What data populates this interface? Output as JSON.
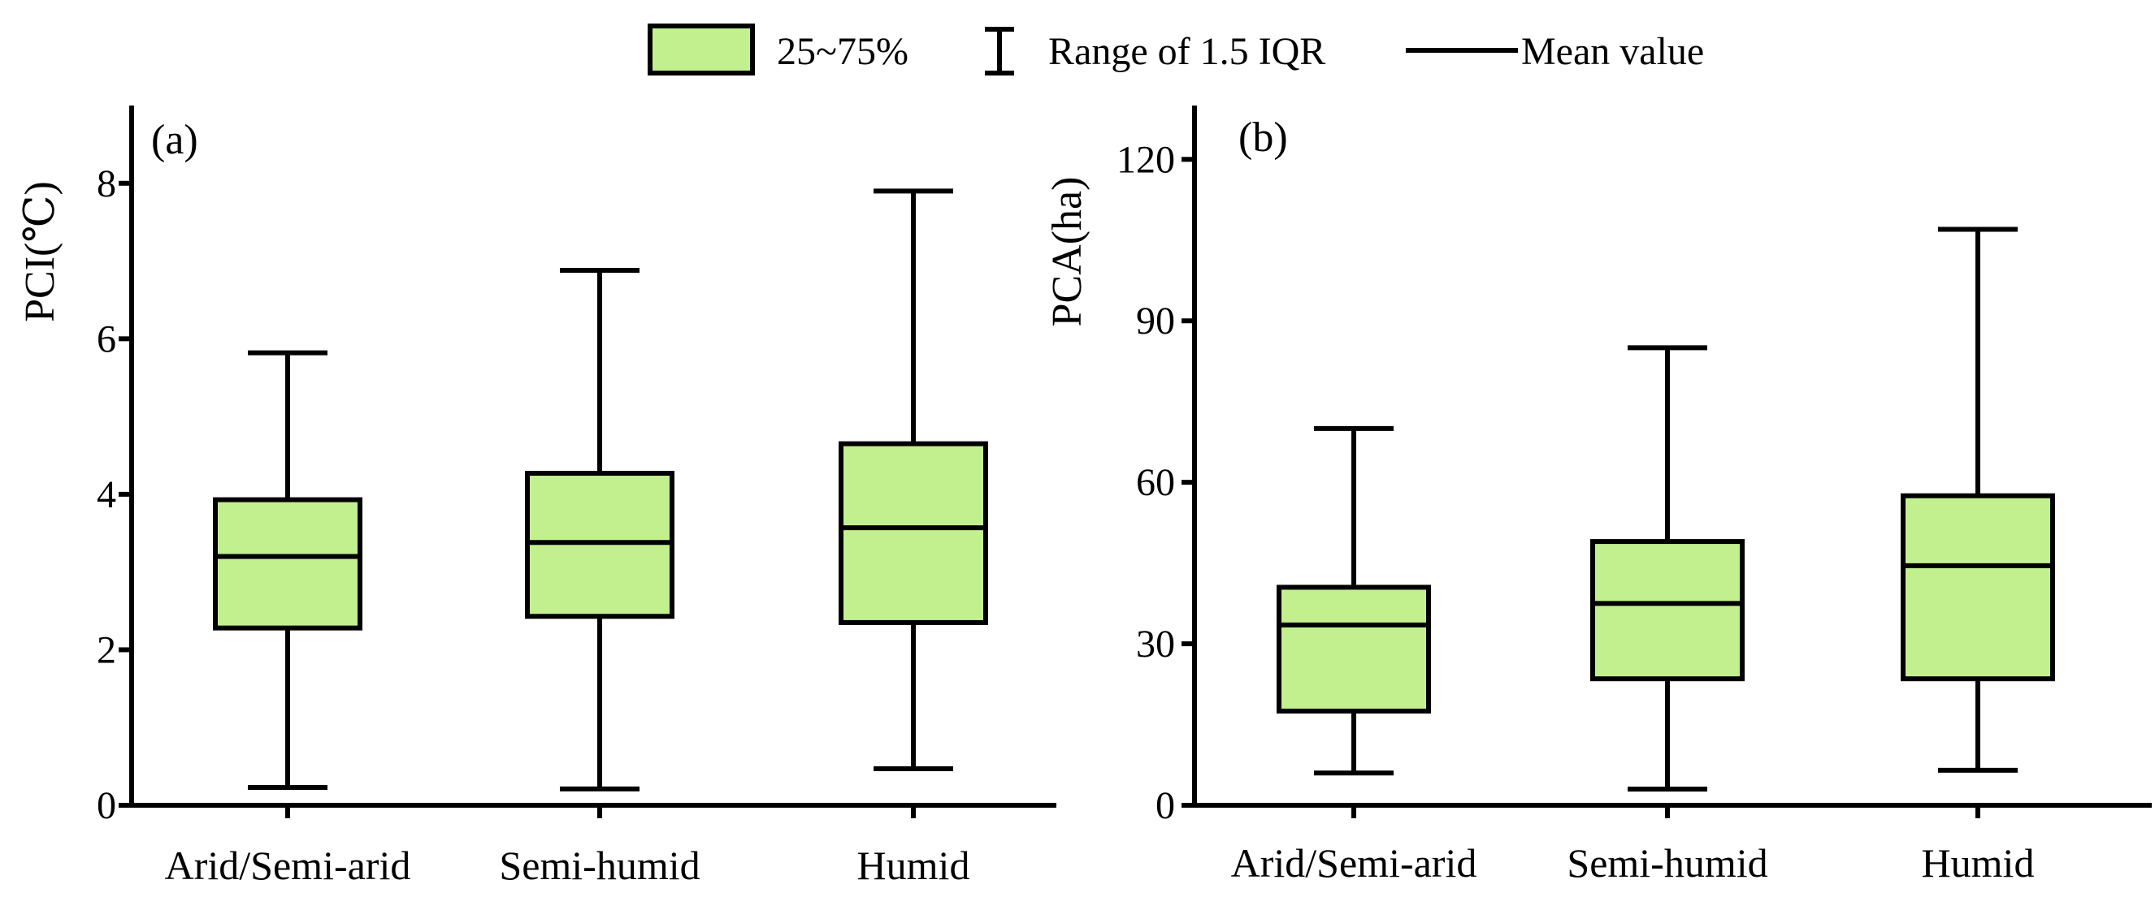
{
  "legend": {
    "box_label": "25~75%",
    "range_label": "Range of 1.5 IQR",
    "mean_label": "Mean value"
  },
  "colors": {
    "box_fill": "#C3F08F",
    "stroke": "#000000"
  },
  "chart_data": [
    {
      "type": "box",
      "panel_label": "(a)",
      "title": "",
      "xlabel": "",
      "ylabel": "PCI(℃)",
      "ylim": [
        0,
        9
      ],
      "yticks": [
        0,
        2,
        4,
        6,
        8
      ],
      "ytick_labels": [
        "0",
        "2",
        "4",
        "6",
        "8"
      ],
      "categories": [
        "Arid/Semi-arid",
        "Semi-humid",
        "Humid"
      ],
      "boxes": [
        {
          "whisker_low": 0.23,
          "q1": 2.28,
          "mean": 3.2,
          "q3": 3.93,
          "whisker_high": 5.82
        },
        {
          "whisker_low": 0.21,
          "q1": 2.43,
          "mean": 3.38,
          "q3": 4.27,
          "whisker_high": 6.88
        },
        {
          "whisker_low": 0.47,
          "q1": 2.35,
          "mean": 3.57,
          "q3": 4.65,
          "whisker_high": 7.9
        }
      ]
    },
    {
      "type": "box",
      "panel_label": "(b)",
      "title": "",
      "xlabel": "",
      "ylabel": "PCA(ha)",
      "ylim": [
        0,
        130
      ],
      "yticks": [
        0,
        30,
        60,
        90,
        120
      ],
      "ytick_labels": [
        "0",
        "30",
        "60",
        "90",
        "120"
      ],
      "categories": [
        "Arid/Semi-arid",
        "Semi-humid",
        "Humid"
      ],
      "boxes": [
        {
          "whisker_low": 6,
          "q1": 17.5,
          "mean": 33.5,
          "q3": 40.5,
          "whisker_high": 70
        },
        {
          "whisker_low": 3,
          "q1": 23.5,
          "mean": 37.5,
          "q3": 49,
          "whisker_high": 85
        },
        {
          "whisker_low": 6.5,
          "q1": 23.5,
          "mean": 44.5,
          "q3": 57.5,
          "whisker_high": 107
        }
      ]
    }
  ]
}
